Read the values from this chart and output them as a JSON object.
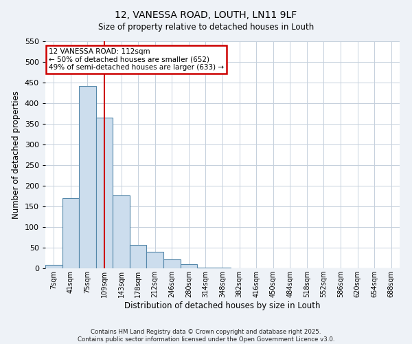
{
  "title": "12, VANESSA ROAD, LOUTH, LN11 9LF",
  "subtitle": "Size of property relative to detached houses in Louth",
  "xlabel": "Distribution of detached houses by size in Louth",
  "ylabel": "Number of detached properties",
  "bar_labels": [
    "7sqm",
    "41sqm",
    "75sqm",
    "109sqm",
    "143sqm",
    "178sqm",
    "212sqm",
    "246sqm",
    "280sqm",
    "314sqm",
    "348sqm",
    "382sqm",
    "416sqm",
    "450sqm",
    "484sqm",
    "518sqm",
    "552sqm",
    "586sqm",
    "620sqm",
    "654sqm",
    "688sqm"
  ],
  "bar_values": [
    8,
    170,
    442,
    365,
    177,
    57,
    40,
    22,
    10,
    2,
    1,
    0,
    0,
    0,
    0,
    0,
    0,
    0,
    0,
    0,
    0
  ],
  "bar_color": "#ccdded",
  "bar_edge_color": "#5588aa",
  "ylim": [
    0,
    550
  ],
  "yticks": [
    0,
    50,
    100,
    150,
    200,
    250,
    300,
    350,
    400,
    450,
    500,
    550
  ],
  "vline_x_index": 3,
  "vline_color": "#cc0000",
  "annotation_title": "12 VANESSA ROAD: 112sqm",
  "annotation_line1": "← 50% of detached houses are smaller (652)",
  "annotation_line2": "49% of semi-detached houses are larger (633) →",
  "annotation_box_color": "#cc0000",
  "footer_line1": "Contains HM Land Registry data © Crown copyright and database right 2025.",
  "footer_line2": "Contains public sector information licensed under the Open Government Licence v3.0.",
  "bg_color": "#eef2f7",
  "plot_bg_color": "#ffffff",
  "grid_color": "#c5d0dc"
}
